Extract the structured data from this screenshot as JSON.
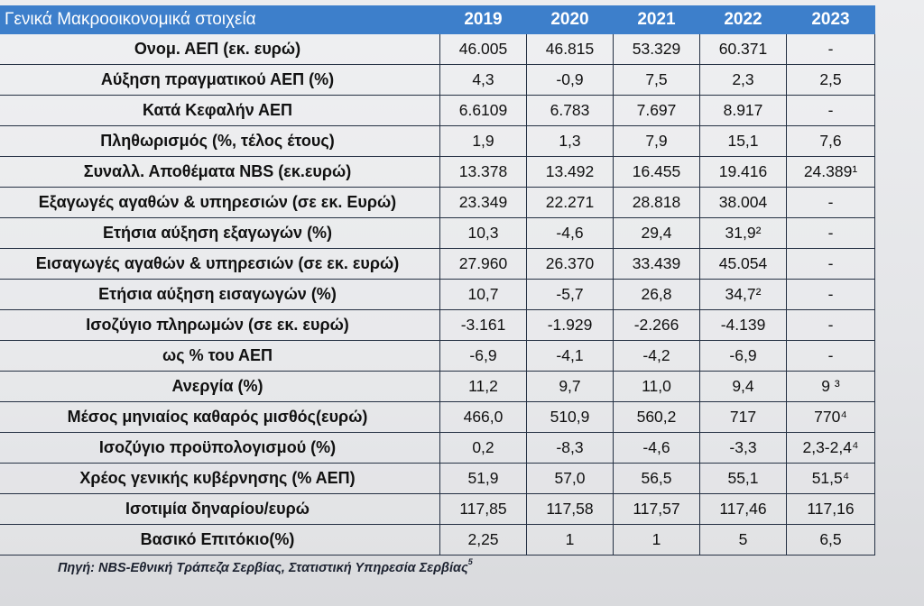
{
  "table": {
    "title": "Γενικά Μακροοικονομικά στοιχεία",
    "years": [
      "2019",
      "2020",
      "2021",
      "2022",
      "2023"
    ],
    "rows": [
      {
        "label": "Ονομ. ΑΕΠ  (εκ. ευρώ)",
        "values": [
          "46.005",
          "46.815",
          "53.329",
          "60.371",
          "-"
        ]
      },
      {
        "label": "Αύξηση πραγματικού ΑΕΠ (%)",
        "values": [
          "4,3",
          "-0,9",
          "7,5",
          "2,3",
          "2,5"
        ]
      },
      {
        "label": "Κατά Κεφαλήν ΑΕΠ",
        "values": [
          "6.6109",
          "6.783",
          "7.697",
          "8.917",
          "-"
        ]
      },
      {
        "label": "Πληθωρισμός (%, τέλος έτους)",
        "values": [
          "1,9",
          "1,3",
          "7,9",
          "15,1",
          "7,6"
        ]
      },
      {
        "label": "Συναλλ. Αποθέματα NBS (εκ.ευρώ)",
        "values": [
          "13.378",
          "13.492",
          "16.455",
          "19.416",
          "24.389¹"
        ]
      },
      {
        "label": "Εξαγωγές αγαθών & υπηρεσιών (σε εκ. Ευρώ)",
        "values": [
          "23.349",
          "22.271",
          "28.818",
          "38.004",
          "-"
        ]
      },
      {
        "label": "Ετήσια αύξηση εξαγωγών (%)",
        "values": [
          "10,3",
          "-4,6",
          "29,4",
          "31,9²",
          "-"
        ]
      },
      {
        "label": "Εισαγωγές αγαθών & υπηρεσιών (σε εκ. ευρώ)",
        "values": [
          "27.960",
          "26.370",
          "33.439",
          "45.054",
          "-"
        ]
      },
      {
        "label": "Ετήσια αύξηση εισαγωγών (%)",
        "values": [
          "10,7",
          "-5,7",
          "26,8",
          "34,7²",
          "-"
        ]
      },
      {
        "label": "Ισοζύγιο πληρωμών (σε εκ. ευρώ)",
        "values": [
          "-3.161",
          "-1.929",
          "-2.266",
          "-4.139",
          "-"
        ]
      },
      {
        "label": "ως % του ΑΕΠ",
        "values": [
          "-6,9",
          "-4,1",
          "-4,2",
          "-6,9",
          "-"
        ]
      },
      {
        "label": "Ανεργία (%)",
        "values": [
          "11,2",
          "9,7",
          "11,0",
          "9,4",
          "9 ³"
        ]
      },
      {
        "label": "Μέσος μηνιαίος καθαρός μισθός(ευρώ)",
        "values": [
          "466,0",
          "510,9",
          "560,2",
          "717",
          "770⁴"
        ]
      },
      {
        "label": "Ισοζύγιο προϋπολογισμού (%)",
        "values": [
          "0,2",
          "-8,3",
          "-4,6",
          "-3,3",
          "2,3-2,4⁴"
        ]
      },
      {
        "label": "Χρέος γενικής κυβέρνησης (% ΑΕΠ)",
        "values": [
          "51,9",
          "57,0",
          "56,5",
          "55,1",
          "51,5⁴"
        ]
      },
      {
        "label": "Ισοτιμία δηναρίου/ευρώ",
        "values": [
          "117,85",
          "117,58",
          "117,57",
          "117,46",
          "117,16"
        ]
      },
      {
        "label": "Βασικό Επιτόκιο(%)",
        "values": [
          "2,25",
          "1",
          "1",
          "5",
          "6,5"
        ]
      }
    ]
  },
  "footnote": {
    "text": "Πηγή: NBS-Εθνική Τράπεζα Σερβίας,  Στατιστική Υπηρεσία Σερβίας",
    "marker": "5"
  },
  "colors": {
    "header_bg": "#3d7fcb",
    "header_text": "#ffffff",
    "border": "#243043"
  }
}
